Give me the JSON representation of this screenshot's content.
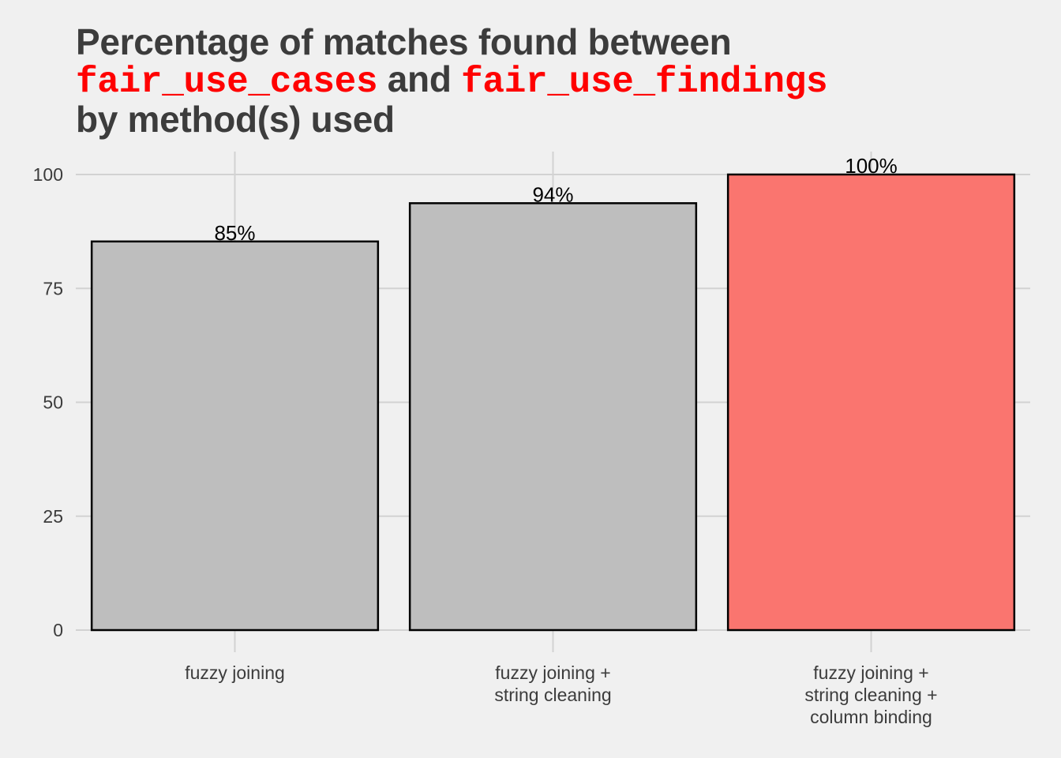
{
  "title": {
    "line1": "Percentage of matches found between",
    "code1": "fair_use_cases",
    "connector": "and",
    "code2": "fair_use_findings",
    "line3": "by method(s) used"
  },
  "colors": {
    "background": "#f0f0f0",
    "title_text": "#3c3c3c",
    "code_text": "#ff0000",
    "bar_default": "#bebebe",
    "bar_highlight": "#fa756f",
    "bar_outline": "#000000",
    "grid": "#d2d2d2"
  },
  "chart_data": {
    "type": "bar",
    "categories": [
      [
        "fuzzy joining"
      ],
      [
        "fuzzy joining +",
        "string cleaning"
      ],
      [
        "fuzzy joining +",
        "string cleaning +",
        "column binding"
      ]
    ],
    "values": [
      85.3,
      93.7,
      100
    ],
    "data_labels": [
      "85%",
      "94%",
      "100%"
    ],
    "highlight_index": 2,
    "ylim": [
      0,
      100
    ],
    "yticks": [
      0,
      25,
      50,
      75,
      100
    ],
    "ytick_labels": [
      "0",
      "25",
      "50",
      "75",
      "100"
    ],
    "grid": true,
    "xlabel": "",
    "ylabel": ""
  }
}
